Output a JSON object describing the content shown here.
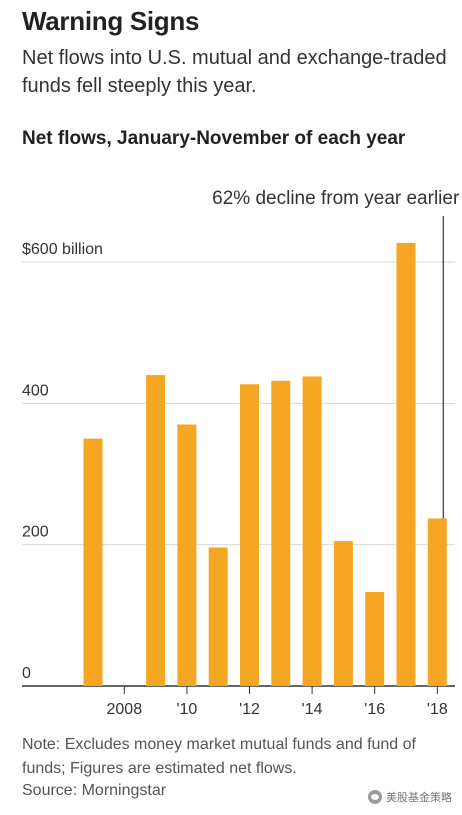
{
  "header": {
    "title": "Warning Signs",
    "subtitle": "Net flows into U.S. mutual and exchange-traded funds fell steeply this year.",
    "chart_title": "Net flows, January-November of each year"
  },
  "footer": {
    "note": "Note: Excludes money market mutual funds and fund of funds; Figures are estimated net flows.",
    "source": "Source: Morningstar",
    "watermark": "美股基金策略"
  },
  "colors": {
    "bar": "#f5a623",
    "grid": "#d9d9d9",
    "axis": "#333333",
    "text": "#333333"
  },
  "chart_data": {
    "type": "bar",
    "title": "Net flows, January-November of each year",
    "xlabel": "",
    "ylabel": "",
    "categories": [
      "2007",
      "2008",
      "2009",
      "2010",
      "2011",
      "2012",
      "2013",
      "2014",
      "2015",
      "2016",
      "2017",
      "2018"
    ],
    "x_tick_labels": [
      "",
      "2008",
      "",
      "'10",
      "",
      "'12",
      "",
      "'14",
      "",
      "'16",
      "",
      "'18"
    ],
    "values": [
      350,
      null,
      440,
      370,
      196,
      427,
      432,
      438,
      205,
      133,
      627,
      237
    ],
    "y_ticks": [
      0,
      200,
      400,
      600
    ],
    "y_tick_labels": [
      "0",
      "200",
      "400",
      "$600 billion"
    ],
    "ylim": [
      0,
      600
    ],
    "grid": true,
    "annotation": {
      "text": "62% decline from year earlier",
      "category": "2018"
    }
  }
}
